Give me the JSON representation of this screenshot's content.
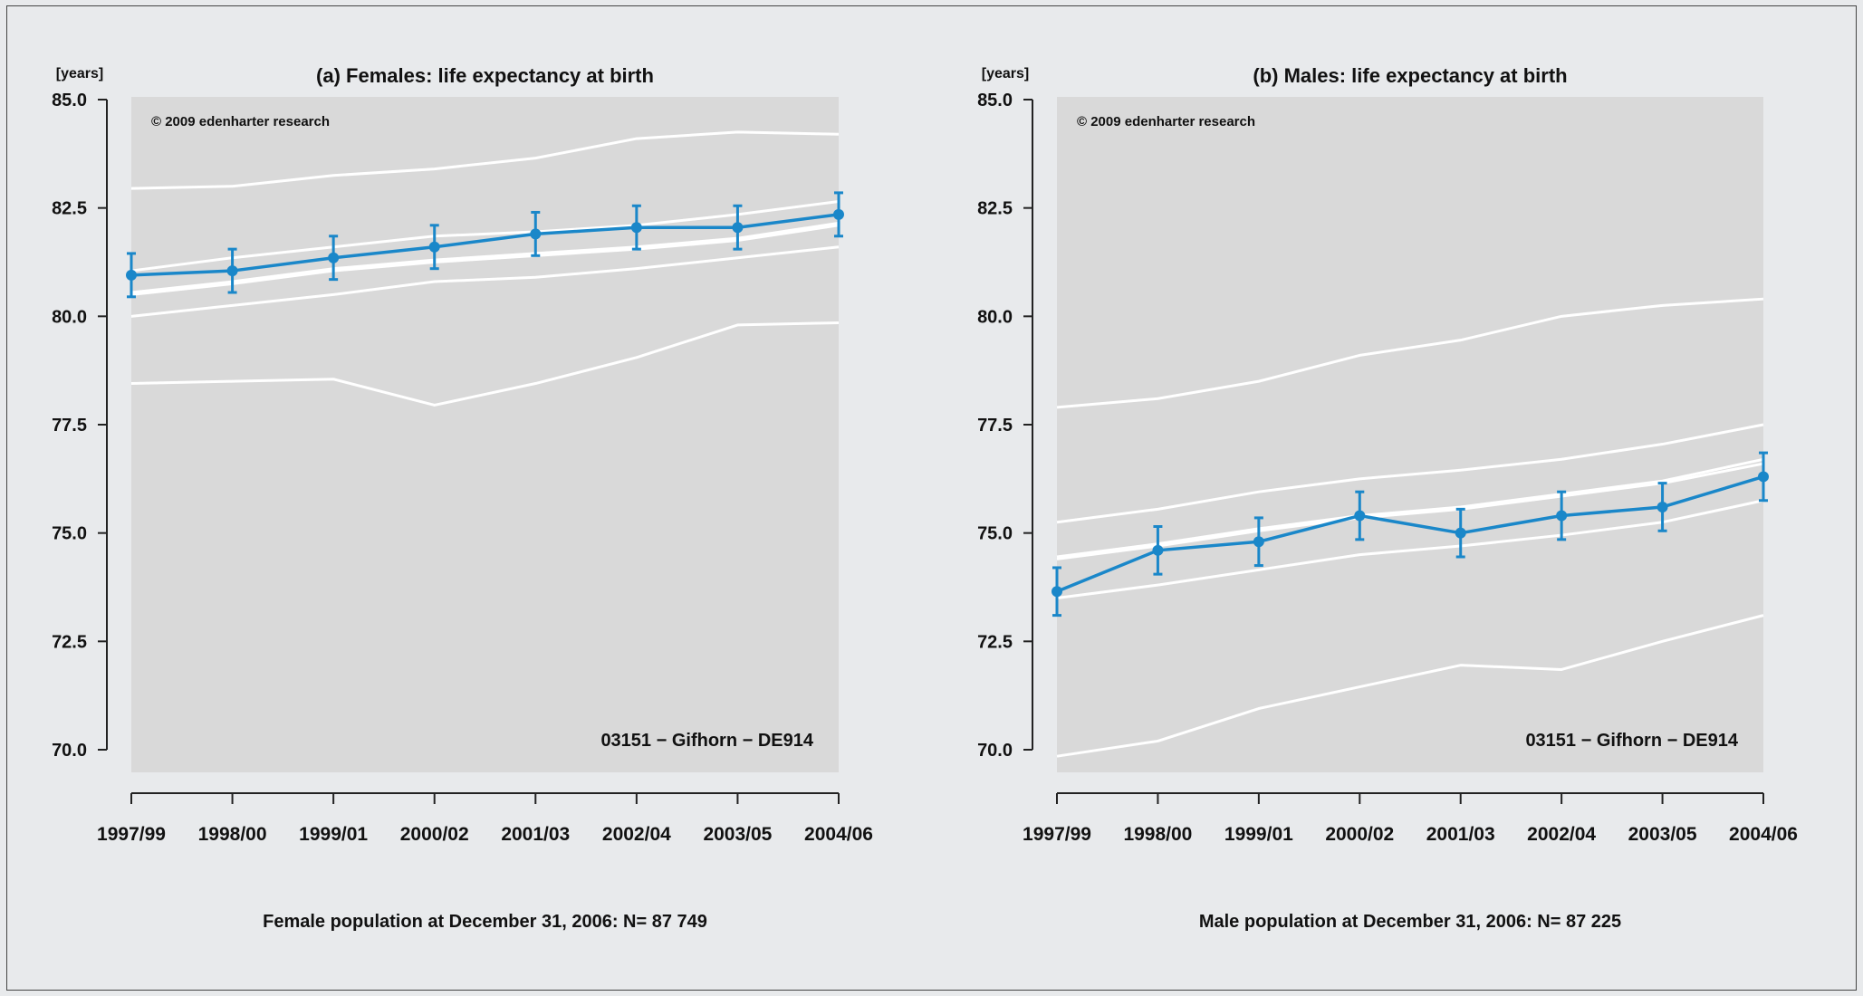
{
  "chart_data": [
    {
      "type": "line",
      "title": "(a) Females: life expectancy at birth",
      "ylabel": "[years]",
      "xlabel": "",
      "ylim": [
        70,
        85
      ],
      "yticks": [
        "70.0",
        "72.5",
        "75.0",
        "77.5",
        "80.0",
        "82.5",
        "85.0"
      ],
      "categories": [
        "1997/99",
        "1998/00",
        "1999/01",
        "2000/02",
        "2001/03",
        "2002/04",
        "2003/05",
        "2004/06"
      ],
      "copyright": "© 2009 edenharter research",
      "region_label": "03151 − Gifhorn − DE914",
      "footer": "Female population at December 31, 2006: N= 87 749",
      "grid": false,
      "colors": {
        "main": "#1a87c9",
        "reference": "#ffffff",
        "panel": "#d9d9d9"
      },
      "reference_series": [
        {
          "values": [
            82.95,
            83.0,
            83.25,
            83.4,
            83.65,
            84.1,
            84.25,
            84.2
          ]
        },
        {
          "values": [
            81.05,
            81.35,
            81.6,
            81.85,
            81.95,
            82.1,
            82.35,
            82.65
          ]
        },
        {
          "values": [
            80.55,
            80.8,
            81.1,
            81.3,
            81.45,
            81.6,
            81.8,
            82.15
          ]
        },
        {
          "values": [
            80.5,
            80.75,
            81.05,
            81.25,
            81.4,
            81.55,
            81.75,
            82.1
          ]
        },
        {
          "values": [
            80.0,
            80.25,
            80.5,
            80.8,
            80.9,
            81.1,
            81.35,
            81.6
          ]
        },
        {
          "values": [
            78.45,
            78.5,
            78.55,
            77.95,
            78.45,
            79.05,
            79.8,
            79.85
          ]
        }
      ],
      "series": [
        {
          "values": [
            80.95,
            81.05,
            81.35,
            81.6,
            81.9,
            82.05,
            82.05,
            82.35
          ],
          "lower": [
            80.45,
            80.55,
            80.85,
            81.1,
            81.4,
            81.55,
            81.55,
            81.85
          ],
          "upper": [
            81.45,
            81.55,
            81.85,
            82.1,
            82.4,
            82.55,
            82.55,
            82.85
          ]
        }
      ]
    },
    {
      "type": "line",
      "title": "(b) Males: life expectancy at birth",
      "ylabel": "[years]",
      "xlabel": "",
      "ylim": [
        70,
        85
      ],
      "yticks": [
        "70.0",
        "72.5",
        "75.0",
        "77.5",
        "80.0",
        "82.5",
        "85.0"
      ],
      "categories": [
        "1997/99",
        "1998/00",
        "1999/01",
        "2000/02",
        "2001/03",
        "2002/04",
        "2003/05",
        "2004/06"
      ],
      "copyright": "© 2009 edenharter research",
      "region_label": "03151 − Gifhorn − DE914",
      "footer": "Male population at December 31, 2006: N= 87 225",
      "grid": false,
      "colors": {
        "main": "#1a87c9",
        "reference": "#ffffff",
        "panel": "#d9d9d9"
      },
      "reference_series": [
        {
          "values": [
            77.9,
            78.1,
            78.5,
            79.1,
            79.45,
            80.0,
            80.25,
            80.4
          ]
        },
        {
          "values": [
            75.25,
            75.55,
            75.95,
            76.25,
            76.45,
            76.7,
            77.05,
            77.5
          ]
        },
        {
          "values": [
            74.45,
            74.75,
            75.1,
            75.4,
            75.6,
            75.9,
            76.2,
            76.7
          ]
        },
        {
          "values": [
            74.4,
            74.7,
            75.05,
            75.35,
            75.55,
            75.85,
            76.15,
            76.6
          ]
        },
        {
          "values": [
            73.5,
            73.8,
            74.15,
            74.5,
            74.7,
            74.95,
            75.25,
            75.75
          ]
        },
        {
          "values": [
            69.85,
            70.2,
            70.95,
            71.45,
            71.95,
            71.85,
            72.5,
            73.1
          ]
        }
      ],
      "series": [
        {
          "values": [
            73.65,
            74.6,
            74.8,
            75.4,
            75.0,
            75.4,
            75.6,
            76.3
          ],
          "lower": [
            73.1,
            74.05,
            74.25,
            74.85,
            74.45,
            74.85,
            75.05,
            75.75
          ],
          "upper": [
            74.2,
            75.15,
            75.35,
            75.95,
            75.55,
            75.95,
            76.15,
            76.85
          ]
        }
      ]
    }
  ]
}
